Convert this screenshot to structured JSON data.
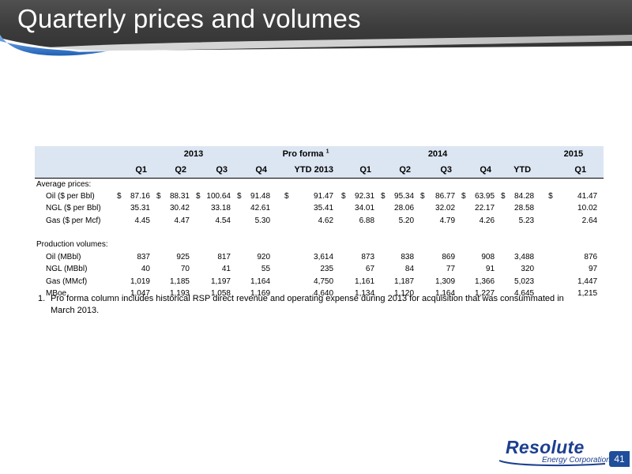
{
  "slide": {
    "title": "Quarterly prices and volumes",
    "page_number": "41"
  },
  "table": {
    "groups": {
      "y2013": "2013",
      "proforma": "Pro forma",
      "proforma_sup": "1",
      "y2014": "2014",
      "y2015": "2015"
    },
    "columns": [
      "Q1",
      "Q2",
      "Q3",
      "Q4",
      "YTD 2013",
      "Q1",
      "Q2",
      "Q3",
      "Q4",
      "YTD",
      "Q1"
    ],
    "sections": {
      "prices": "Average prices:",
      "volumes": "Production volumes:"
    },
    "price_rows": [
      {
        "label": "Oil ($ per Bbl)",
        "dollar": true,
        "values": [
          "87.16",
          "88.31",
          "100.64",
          "91.48",
          "91.47",
          "92.31",
          "95.34",
          "86.77",
          "63.95",
          "84.28",
          "41.47"
        ]
      },
      {
        "label": "NGL ($ per Bbl)",
        "dollar": false,
        "values": [
          "35.31",
          "30.42",
          "33.18",
          "42.61",
          "35.41",
          "34.01",
          "28.06",
          "32.02",
          "22.17",
          "28.58",
          "10.02"
        ]
      },
      {
        "label": "Gas ($ per Mcf)",
        "dollar": false,
        "values": [
          "4.45",
          "4.47",
          "4.54",
          "5.30",
          "4.62",
          "6.88",
          "5.20",
          "4.79",
          "4.26",
          "5.23",
          "2.64"
        ]
      }
    ],
    "volume_rows": [
      {
        "label": "Oil (MBbl)",
        "values": [
          "837",
          "925",
          "817",
          "920",
          "3,614",
          "873",
          "838",
          "869",
          "908",
          "3,488",
          "876"
        ]
      },
      {
        "label": "NGL (MBbl)",
        "values": [
          "40",
          "70",
          "41",
          "55",
          "235",
          "67",
          "84",
          "77",
          "91",
          "320",
          "97"
        ]
      },
      {
        "label": "Gas (MMcf)",
        "values": [
          "1,019",
          "1,185",
          "1,197",
          "1,164",
          "4,750",
          "1,161",
          "1,187",
          "1,309",
          "1,366",
          "5,023",
          "1,447"
        ]
      },
      {
        "label": "MBoe",
        "values": [
          "1,047",
          "1,193",
          "1,058",
          "1,169",
          "4,640",
          "1,134",
          "1,120",
          "1,164",
          "1,227",
          "4,645",
          "1,215"
        ]
      }
    ],
    "dollar_sign": "$"
  },
  "footnote": {
    "number": "1.",
    "text": "Pro forma column includes historical RSP direct revenue and operating expense during 2013 for acquisition that was consummated in March 2013."
  },
  "logo": {
    "name": "Resolute",
    "subtitle": "Energy Corporation"
  },
  "colors": {
    "header_bg": "#3c3c3c",
    "table_header_bg": "#dce6f2",
    "brand_blue": "#1c3f8f",
    "swoosh_blue": "#3a7fd0"
  }
}
